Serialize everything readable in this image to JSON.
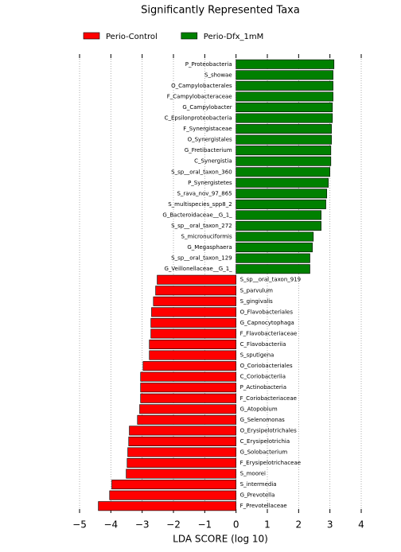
{
  "chart_data": {
    "type": "bar",
    "orientation": "horizontal",
    "title": "Significantly Represented Taxa",
    "xlabel": "LDA SCORE (log 10)",
    "categories": [
      "P_Proteobacteria",
      "S_showae",
      "O_Campylobacterales",
      "F_Campylobacteraceae",
      "G_Campylobacter",
      "C_Epsilonproteobacteria",
      "F_Synergistaceae",
      "O_Synergistales",
      "G_Fretibacterium",
      "C_Synergistia",
      "S_sp__oral_taxon_360",
      "P_Synergistetes",
      "S_rava_nov_97_865",
      "S_multispecies_spp8_2",
      "G_Bacteroidaceae__G_1_",
      "S_sp__oral_taxon_272",
      "S_micronuciformis",
      "G_Megasphaera",
      "S_sp__oral_taxon_129",
      "G_Veillonellaceae__G_1_",
      "S_sp__oral_taxon_919",
      "S_parvulum",
      "S_gingivalis",
      "O_Flavobacteriales",
      "G_Capnocytophaga",
      "F_Flavobacteriaceae",
      "C_Flavobacteriia",
      "S_sputigena",
      "O_Coriobacteriales",
      "C_Coriobacteriia",
      "P_Actinobacteria",
      "F_Coriobacteriaceae",
      "G_Atopobium",
      "G_Selenomonas",
      "O_Erysipelotrichales",
      "C_Erysipelotrichia",
      "G_Solobacterium",
      "F_Erysipelotrichaceae",
      "S_moorei",
      "S_intermedia",
      "G_Prevotella",
      "F_Prevotellaceae"
    ],
    "series": [
      {
        "name": "Perio-Control",
        "color": "#ff0000",
        "values": [
          null,
          null,
          null,
          null,
          null,
          null,
          null,
          null,
          null,
          null,
          null,
          null,
          null,
          null,
          null,
          null,
          null,
          null,
          null,
          null,
          -2.52,
          -2.57,
          -2.64,
          -2.7,
          -2.72,
          -2.72,
          -2.77,
          -2.77,
          -2.97,
          -3.05,
          -3.05,
          -3.05,
          -3.08,
          -3.15,
          -3.41,
          -3.43,
          -3.46,
          -3.48,
          -3.51,
          -3.97,
          -4.04,
          -4.4
        ]
      },
      {
        "name": "Perio-Dfx_1mM",
        "color": "#008000",
        "values": [
          3.13,
          3.1,
          3.1,
          3.1,
          3.08,
          3.08,
          3.05,
          3.05,
          3.03,
          3.03,
          3.0,
          2.95,
          2.9,
          2.87,
          2.72,
          2.72,
          2.47,
          2.44,
          2.36,
          2.36,
          null,
          null,
          null,
          null,
          null,
          null,
          null,
          null,
          null,
          null,
          null,
          null,
          null,
          null,
          null,
          null,
          null,
          null,
          null,
          null,
          null,
          null
        ]
      }
    ],
    "xlim": [
      -5,
      4
    ],
    "xticks": [
      {
        "value": -5,
        "label": "−5"
      },
      {
        "value": -4,
        "label": "−4"
      },
      {
        "value": -3,
        "label": "−3"
      },
      {
        "value": -2,
        "label": "−2"
      },
      {
        "value": -1,
        "label": "−1"
      },
      0,
      1,
      2,
      3,
      4
    ],
    "grid": true,
    "legend": "top"
  }
}
